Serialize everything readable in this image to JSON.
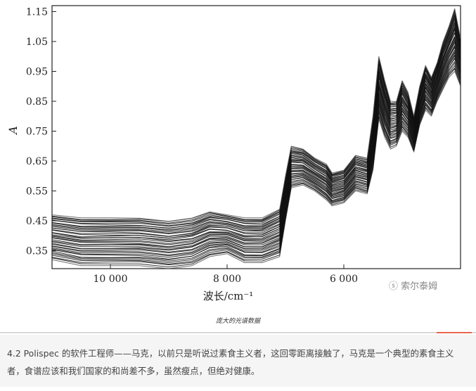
{
  "chart_data": {
    "type": "line",
    "title": "",
    "xlabel": "波长/cm⁻¹",
    "ylabel": "A",
    "xlim": [
      11000,
      4000
    ],
    "ylim": [
      0.29,
      1.17
    ],
    "x_ticks": [
      {
        "value": 10000,
        "label": "10 000"
      },
      {
        "value": 8000,
        "label": "8 000"
      },
      {
        "value": 6000,
        "label": "6 000"
      }
    ],
    "y_ticks": [
      {
        "value": 1.15,
        "label": "1.15"
      },
      {
        "value": 1.05,
        "label": "1.05"
      },
      {
        "value": 0.95,
        "label": "0.95"
      },
      {
        "value": 0.85,
        "label": "0.85"
      },
      {
        "value": 0.75,
        "label": "0.75"
      },
      {
        "value": 0.65,
        "label": "0.65"
      },
      {
        "value": 0.55,
        "label": "0.55"
      },
      {
        "value": 0.45,
        "label": "0.45"
      },
      {
        "value": 0.35,
        "label": "0.35"
      }
    ],
    "grid": false,
    "series_count": 40,
    "envelope": {
      "x": [
        11000,
        10500,
        10000,
        9500,
        9000,
        8600,
        8300,
        8000,
        7700,
        7400,
        7100,
        7000,
        6900,
        6700,
        6500,
        6300,
        6200,
        6000,
        5800,
        5600,
        5500,
        5400,
        5300,
        5200,
        5100,
        5000,
        4900,
        4800,
        4700,
        4600,
        4500,
        4400,
        4300,
        4200,
        4100,
        4000
      ],
      "upper": [
        0.47,
        0.46,
        0.46,
        0.46,
        0.45,
        0.46,
        0.48,
        0.47,
        0.46,
        0.46,
        0.49,
        0.6,
        0.7,
        0.69,
        0.66,
        0.64,
        0.61,
        0.62,
        0.67,
        0.66,
        0.8,
        1.0,
        0.92,
        0.85,
        0.85,
        0.92,
        0.88,
        0.8,
        0.9,
        0.97,
        0.93,
        0.98,
        1.05,
        1.1,
        1.16,
        1.06
      ],
      "lower": [
        0.32,
        0.3,
        0.3,
        0.3,
        0.29,
        0.3,
        0.33,
        0.34,
        0.31,
        0.31,
        0.33,
        0.45,
        0.56,
        0.57,
        0.55,
        0.52,
        0.5,
        0.51,
        0.55,
        0.54,
        0.62,
        0.79,
        0.73,
        0.69,
        0.7,
        0.75,
        0.73,
        0.68,
        0.77,
        0.82,
        0.8,
        0.85,
        0.89,
        0.93,
        0.95,
        0.9
      ]
    }
  },
  "watermark": "索尔泰姆",
  "caption": "庞大的光谱数据",
  "paragraph": "4.2 Polispec 的软件工程师——马克，以前只是听说过素食主义者，这回零距离接触了，马克是一个典型的素食主义者，食谱应该和我们国家的和尚差不多，虽然瘦点，但绝对健康。",
  "colors": {
    "accent": "#e8674d",
    "text": "#444444",
    "panel": "#f5f5f5",
    "line": "#111111"
  }
}
